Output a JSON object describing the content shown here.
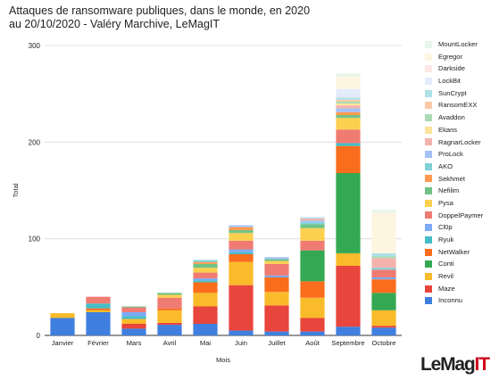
{
  "title_line1": "Attaques de ransomware publiques, dans le monde, en 2020",
  "title_line2": "au 20/10/2020 - Valéry Marchive, LeMagIT",
  "logo": {
    "prefix": "LeMag",
    "suffix": "IT",
    "accent": "#d0021b"
  },
  "chart_data": {
    "type": "bar",
    "stacked": true,
    "title": "Attaques de ransomware publiques, dans le monde, en 2020",
    "subtitle": "au 20/10/2020 - Valéry Marchive, LeMagIT",
    "xlabel": "Mois",
    "ylabel": "Total",
    "ylim": [
      0,
      300
    ],
    "yticks": [
      0,
      100,
      200,
      300
    ],
    "grid": true,
    "legend_position": "right",
    "categories": [
      "Janvier",
      "Février",
      "Mars",
      "Avril",
      "Mai",
      "Juin",
      "Juillet",
      "Août",
      "Septembre",
      "Octobre"
    ],
    "series": [
      {
        "name": "Inconnu",
        "color": "#3f7fe0",
        "values": [
          18,
          24,
          7,
          11,
          12,
          5,
          4,
          4,
          9,
          8
        ]
      },
      {
        "name": "Maze",
        "color": "#e8453c",
        "values": [
          0,
          0,
          5,
          2,
          18,
          47,
          27,
          14,
          63,
          2
        ]
      },
      {
        "name": "Revil",
        "color": "#f9bb2a",
        "values": [
          5,
          2,
          5,
          13,
          14,
          24,
          14,
          21,
          13,
          16
        ]
      },
      {
        "name": "NetWalker",
        "color": "#fa6d1c",
        "values": [
          0,
          2,
          0,
          2,
          11,
          8,
          15,
          17,
          0,
          0
        ]
      },
      {
        "name": "Conti",
        "color": "#34a853",
        "values": [
          0,
          0,
          0,
          0,
          0,
          0,
          0,
          32,
          83,
          18
        ]
      },
      {
        "name": "NetWalker",
        "color": "#fa6d1c",
        "values": [
          0,
          0,
          0,
          0,
          0,
          0,
          0,
          0,
          28,
          14
        ]
      },
      {
        "name": "Ryuk",
        "color": "#46bdc6",
        "values": [
          0,
          5,
          3,
          0,
          2,
          2,
          0,
          0,
          3,
          0
        ]
      },
      {
        "name": "Cl0p",
        "color": "#7baaf7",
        "values": [
          0,
          0,
          4,
          0,
          2,
          3,
          2,
          0,
          0,
          2
        ]
      },
      {
        "name": "DoppelPaymer",
        "color": "#f07b72",
        "values": [
          0,
          7,
          5,
          11,
          6,
          9,
          12,
          10,
          14,
          8
        ]
      },
      {
        "name": "Pysa",
        "color": "#fcd04f",
        "values": [
          0,
          0,
          0,
          3,
          5,
          8,
          3,
          13,
          12,
          0
        ]
      },
      {
        "name": "Nefilim",
        "color": "#71c287",
        "values": [
          0,
          0,
          1,
          2,
          4,
          3,
          2,
          4,
          3,
          0
        ]
      },
      {
        "name": "Sekhmet",
        "color": "#ff994d",
        "values": [
          0,
          0,
          0,
          0,
          2,
          3,
          0,
          0,
          3,
          0
        ]
      },
      {
        "name": "AKO",
        "color": "#7ed1d7",
        "values": [
          0,
          0,
          0,
          0,
          2,
          0,
          0,
          2,
          0,
          2
        ]
      },
      {
        "name": "ProLock",
        "color": "#a3c2f5",
        "values": [
          0,
          0,
          0,
          0,
          0,
          2,
          2,
          2,
          4,
          0
        ]
      },
      {
        "name": "RagnarLocker",
        "color": "#f5b2ac",
        "values": [
          0,
          0,
          0,
          0,
          0,
          0,
          0,
          2,
          3,
          10
        ]
      },
      {
        "name": "Ekans",
        "color": "#fde49b",
        "values": [
          0,
          0,
          0,
          0,
          0,
          0,
          0,
          0,
          2,
          0
        ]
      },
      {
        "name": "Avaddon",
        "color": "#a8dab5",
        "values": [
          0,
          0,
          0,
          0,
          0,
          0,
          0,
          0,
          2,
          2
        ]
      },
      {
        "name": "RansomEXX",
        "color": "#fcc8a5",
        "values": [
          0,
          0,
          0,
          0,
          0,
          0,
          0,
          0,
          2,
          0
        ]
      },
      {
        "name": "SunCrypt",
        "color": "#aee2e6",
        "values": [
          0,
          0,
          0,
          0,
          0,
          0,
          0,
          1,
          2,
          3
        ]
      },
      {
        "name": "LockBit",
        "color": "#e3ecfc",
        "values": [
          0,
          0,
          0,
          0,
          0,
          0,
          0,
          1,
          9,
          0
        ]
      },
      {
        "name": "Darkside",
        "color": "#fde7e4",
        "values": [
          0,
          0,
          0,
          0,
          0,
          0,
          0,
          0,
          0,
          0
        ]
      },
      {
        "name": "Egregor",
        "color": "#fef5e1",
        "values": [
          0,
          0,
          0,
          0,
          0,
          0,
          0,
          0,
          13,
          42
        ]
      },
      {
        "name": "MountLocker",
        "color": "#e8f6ec",
        "values": [
          0,
          0,
          0,
          0,
          0,
          0,
          0,
          0,
          3,
          3
        ]
      }
    ]
  }
}
